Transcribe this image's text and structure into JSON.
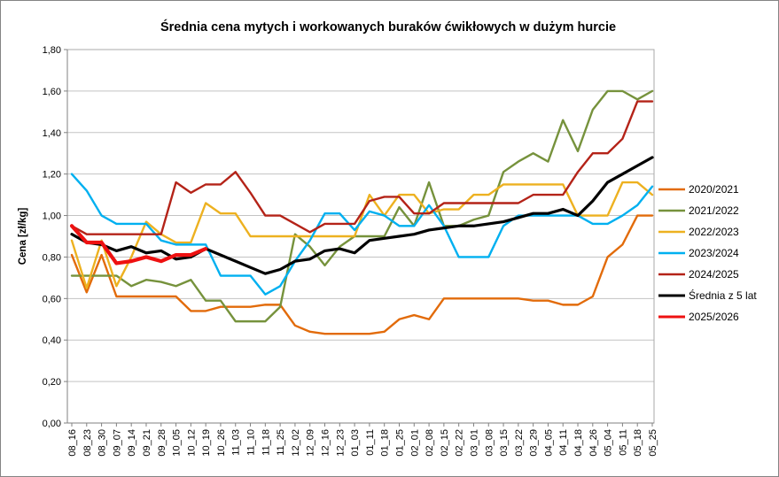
{
  "chart_data": {
    "type": "line",
    "title": "Średnia cena mytych i workowanych buraków ćwikłowych w dużym hurcie",
    "ylabel": "Cena [zł/kg]",
    "ylim": [
      0,
      1.8
    ],
    "ytick_step": 0.2,
    "grid": true,
    "legend_position": "right",
    "decimal_separator": ",",
    "x": [
      "08_16",
      "08_23",
      "08_30",
      "09_07",
      "09_14",
      "09_21",
      "09_28",
      "10_05",
      "10_12",
      "10_19",
      "10_26",
      "11_03",
      "11_10",
      "11_18",
      "11_25",
      "12_02",
      "12_09",
      "12_16",
      "12_23",
      "01_03",
      "01_11",
      "01_18",
      "01_25",
      "02_01",
      "02_08",
      "02_15",
      "02_22",
      "03_01",
      "03_08",
      "03_15",
      "03_22",
      "03_29",
      "04_05",
      "04_11",
      "04_18",
      "04_26",
      "05_04",
      "05_11",
      "05_18",
      "05_25"
    ],
    "series": [
      {
        "name": "2020/2021",
        "color": "#E26B0A",
        "width": 2.4,
        "values": [
          0.81,
          0.63,
          0.81,
          0.61,
          0.61,
          0.61,
          0.61,
          0.61,
          0.54,
          0.54,
          0.56,
          0.56,
          0.56,
          0.57,
          0.57,
          0.47,
          0.44,
          0.43,
          0.43,
          0.43,
          0.43,
          0.44,
          0.5,
          0.52,
          0.5,
          0.6,
          0.6,
          0.6,
          0.6,
          0.6,
          0.6,
          0.59,
          0.59,
          0.57,
          0.57,
          0.61,
          0.8,
          0.86,
          1.0,
          1.0
        ]
      },
      {
        "name": "2021/2022",
        "color": "#76923C",
        "width": 2.4,
        "values": [
          0.71,
          0.71,
          0.71,
          0.71,
          0.66,
          0.69,
          0.68,
          0.66,
          0.69,
          0.59,
          0.59,
          0.49,
          0.49,
          0.49,
          0.56,
          0.91,
          0.85,
          0.76,
          0.85,
          0.9,
          0.9,
          0.9,
          1.04,
          0.95,
          1.16,
          0.95,
          0.95,
          0.98,
          1.0,
          1.21,
          1.26,
          1.3,
          1.26,
          1.46,
          1.31,
          1.51,
          1.6,
          1.6,
          1.56,
          1.6
        ]
      },
      {
        "name": "2022/2023",
        "color": "#EDB120",
        "width": 2.4,
        "values": [
          0.88,
          0.65,
          0.88,
          0.66,
          0.8,
          0.97,
          0.91,
          0.87,
          0.87,
          1.06,
          1.01,
          1.01,
          0.9,
          0.9,
          0.9,
          0.9,
          0.9,
          0.9,
          0.9,
          0.9,
          1.1,
          1.0,
          1.1,
          1.1,
          1.01,
          1.03,
          1.03,
          1.1,
          1.1,
          1.15,
          1.15,
          1.15,
          1.15,
          1.15,
          1.0,
          1.0,
          1.0,
          1.16,
          1.16,
          1.1
        ]
      },
      {
        "name": "2023/2024",
        "color": "#00B0F0",
        "width": 2.4,
        "values": [
          1.2,
          1.12,
          1.0,
          0.96,
          0.96,
          0.96,
          0.88,
          0.86,
          0.86,
          0.86,
          0.71,
          0.71,
          0.71,
          0.62,
          0.66,
          0.78,
          0.88,
          1.01,
          1.01,
          0.93,
          1.02,
          1.0,
          0.95,
          0.95,
          1.05,
          0.95,
          0.8,
          0.8,
          0.8,
          0.95,
          1.0,
          1.0,
          1.0,
          1.0,
          1.0,
          0.96,
          0.96,
          1.0,
          1.05,
          1.14
        ]
      },
      {
        "name": "2024/2025",
        "color": "#B42318",
        "width": 2.4,
        "values": [
          0.95,
          0.91,
          0.91,
          0.91,
          0.91,
          0.91,
          0.91,
          1.16,
          1.11,
          1.15,
          1.15,
          1.21,
          1.11,
          1.0,
          1.0,
          0.96,
          0.92,
          0.96,
          0.96,
          0.96,
          1.07,
          1.09,
          1.09,
          1.01,
          1.01,
          1.06,
          1.06,
          1.06,
          1.06,
          1.06,
          1.06,
          1.1,
          1.1,
          1.1,
          1.21,
          1.3,
          1.3,
          1.37,
          1.55,
          1.55
        ]
      },
      {
        "name": "Średnia z 5 lat",
        "color": "#000000",
        "width": 3.2,
        "values": [
          0.91,
          0.87,
          0.86,
          0.83,
          0.85,
          0.82,
          0.83,
          0.79,
          0.8,
          0.84,
          0.81,
          0.78,
          0.75,
          0.72,
          0.74,
          0.78,
          0.79,
          0.83,
          0.84,
          0.82,
          0.88,
          0.89,
          0.9,
          0.91,
          0.93,
          0.94,
          0.95,
          0.95,
          0.96,
          0.97,
          0.99,
          1.01,
          1.01,
          1.03,
          1.0,
          1.07,
          1.16,
          1.2,
          1.24,
          1.28
        ]
      },
      {
        "name": "2025/2026",
        "color": "#EE1111",
        "width": 4.2,
        "values": [
          0.95,
          0.87,
          0.87,
          0.77,
          0.78,
          0.8,
          0.78,
          0.81,
          0.81,
          0.84
        ]
      }
    ]
  }
}
